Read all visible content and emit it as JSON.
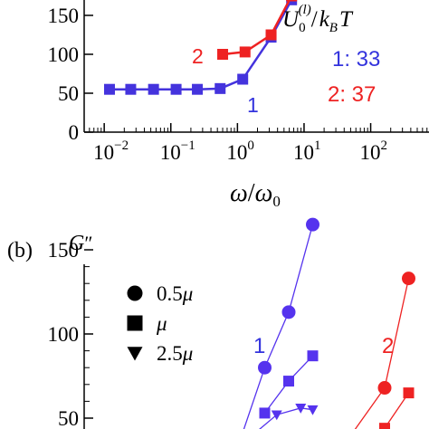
{
  "chart_data": [
    {
      "type": "line",
      "panel": "a",
      "x_scale": "log",
      "xlim": [
        0.005,
        1000
      ],
      "ylim": [
        0,
        180
      ],
      "x_tick_values": [
        0.01,
        0.1,
        1,
        10,
        100
      ],
      "x_tick_labels": [
        {
          "base": "10",
          "exp": "−2"
        },
        {
          "base": "10",
          "exp": "−1"
        },
        {
          "base": "10",
          "exp": "0"
        },
        {
          "base": "10",
          "exp": "1"
        },
        {
          "base": "10",
          "exp": "2"
        }
      ],
      "y_tick_values": [
        0,
        50,
        100,
        150
      ],
      "y_tick_labels": [
        "0",
        "50",
        "100",
        "150"
      ],
      "xlabel": {
        "a": "ω",
        "slash": "/",
        "b": "ω",
        "sub": "0"
      },
      "legend": {
        "lhs_symbol": "U",
        "lhs_sub": "0",
        "lhs_sup": "(l)",
        "rhs_symbol": "k",
        "rhs_sub": "B",
        "rhs_var": "T",
        "entries": [
          {
            "label": "1: 33",
            "color": "#3333dd"
          },
          {
            "label": "2: 37",
            "color": "#ee2222"
          }
        ]
      },
      "series": [
        {
          "name": "1",
          "color": "#4433dd",
          "marker": "square",
          "x": [
            0.012,
            0.025,
            0.055,
            0.12,
            0.25,
            0.55,
            1.2,
            3.2,
            6.5
          ],
          "y": [
            55,
            55,
            55,
            55,
            55,
            56,
            68,
            122,
            170
          ]
        },
        {
          "name": "2",
          "color": "#ee2222",
          "marker": "square",
          "x": [
            0.6,
            1.3,
            3.2,
            6.5
          ],
          "y": [
            100,
            103,
            125,
            175
          ]
        }
      ],
      "series_labels": [
        {
          "text": "1",
          "color": "#3333dd"
        },
        {
          "text": "2",
          "color": "#ee2222"
        }
      ]
    },
    {
      "type": "line",
      "panel": "b",
      "panel_label": "(b)",
      "ylabel": {
        "symbol": "G",
        "mark": "″"
      },
      "ylim": [
        30,
        180
      ],
      "y_tick_values": [
        50,
        100,
        150
      ],
      "y_tick_labels": [
        "50",
        "100",
        "150"
      ],
      "marker_legend": [
        {
          "marker": "circle",
          "label_prefix": "0.5",
          "label_var": "μ"
        },
        {
          "marker": "square",
          "label_prefix": "",
          "label_var": "μ"
        },
        {
          "marker": "triangle",
          "label_prefix": "2.5",
          "label_var": "μ"
        }
      ],
      "series_labels": [
        {
          "text": "1",
          "color": "#3333dd"
        },
        {
          "text": "2",
          "color": "#ee2222"
        }
      ],
      "series": [
        {
          "name": "1 0.5μ",
          "color": "#5533ee",
          "marker": "circle",
          "x": [
            0,
            1,
            2,
            3
          ],
          "y": [
            38,
            80,
            113,
            165
          ]
        },
        {
          "name": "1 μ",
          "color": "#5533ee",
          "marker": "square",
          "x": [
            1,
            2,
            3
          ],
          "y": [
            53,
            72,
            87
          ]
        },
        {
          "name": "1 2.5μ",
          "color": "#5533ee",
          "marker": "triangle",
          "x": [
            0.5,
            1.5,
            2.5,
            3
          ],
          "y": [
            40,
            52,
            56,
            55
          ]
        },
        {
          "name": "2 0.5μ",
          "color": "#ee2222",
          "marker": "circle",
          "x": [
            1.5,
            4.5,
            6,
            7
          ],
          "y": [
            38,
            38,
            68,
            133
          ]
        },
        {
          "name": "2 μ",
          "color": "#ee2222",
          "marker": "square",
          "x": [
            6,
            7
          ],
          "y": [
            44,
            65
          ]
        }
      ]
    }
  ]
}
